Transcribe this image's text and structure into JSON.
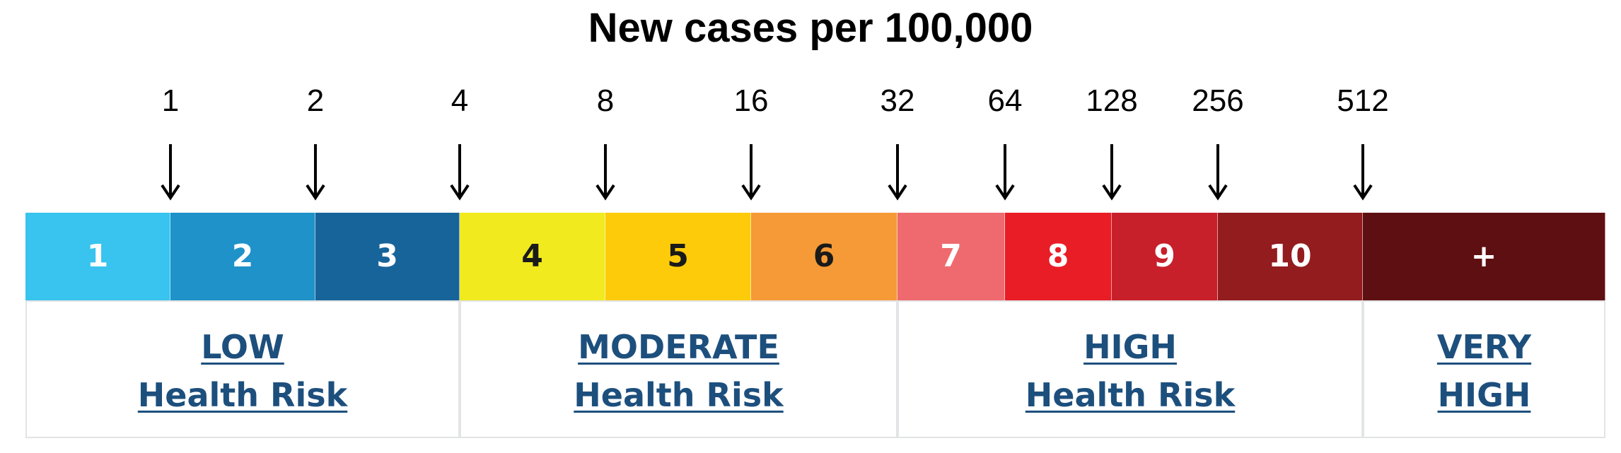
{
  "title": "New cases per 100,000",
  "threshold_markers": [
    "1",
    "2",
    "4",
    "8",
    "16",
    "32",
    "64",
    "128",
    "256",
    "512"
  ],
  "segments": [
    {
      "label": "1",
      "color": "#38c4ef",
      "text_color": "#ffffff"
    },
    {
      "label": "2",
      "color": "#1e92c9",
      "text_color": "#ffffff"
    },
    {
      "label": "3",
      "color": "#17649a",
      "text_color": "#ffffff"
    },
    {
      "label": "4",
      "color": "#f1ea1f",
      "text_color": "#1a1a1a"
    },
    {
      "label": "5",
      "color": "#fecb0a",
      "text_color": "#1a1a1a"
    },
    {
      "label": "6",
      "color": "#f59a37",
      "text_color": "#1a1a1a"
    },
    {
      "label": "7",
      "color": "#ef6a6e",
      "text_color": "#ffffff"
    },
    {
      "label": "8",
      "color": "#e91d26",
      "text_color": "#ffffff"
    },
    {
      "label": "9",
      "color": "#c7202a",
      "text_color": "#ffffff"
    },
    {
      "label": "10",
      "color": "#931c1f",
      "text_color": "#ffffff"
    },
    {
      "label": "+",
      "color": "#5e0f11",
      "text_color": "#ffffff"
    }
  ],
  "risk_levels": [
    {
      "line1": "LOW",
      "line2": "Health Risk"
    },
    {
      "line1": "MODERATE",
      "line2": "Health Risk"
    },
    {
      "line1": "HIGH",
      "line2": "Health Risk"
    },
    {
      "line1": "VERY",
      "line2": "HIGH"
    }
  ],
  "colors": {
    "link": "#1d4f7d",
    "box_border": "#e2e4e6"
  }
}
